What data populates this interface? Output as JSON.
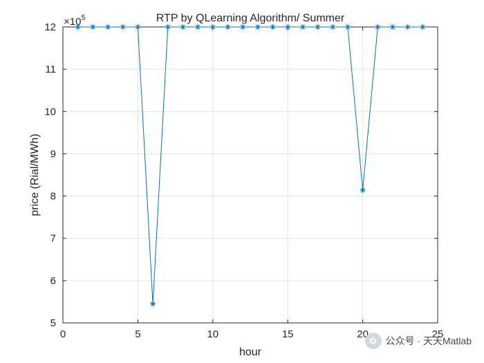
{
  "chart_data": {
    "type": "line",
    "title": "RTP by QLearning Algorithm/ Summer",
    "xlabel": "hour",
    "ylabel": "price (Rial/MWh)",
    "y_exponent_label": "×10",
    "y_exponent_power": "5",
    "xlim": [
      0,
      25
    ],
    "ylim": [
      5,
      12
    ],
    "x_ticks": [
      0,
      5,
      10,
      15,
      20,
      25
    ],
    "y_ticks": [
      5,
      6,
      7,
      8,
      9,
      10,
      11,
      12
    ],
    "grid": true,
    "marker": "*",
    "line_color": "#0072BD",
    "series": [
      {
        "x": [
          1,
          2,
          3,
          4,
          5,
          6,
          7,
          8,
          9,
          10,
          11,
          12,
          13,
          14,
          15,
          16,
          17,
          18,
          19,
          20,
          21,
          22,
          23,
          24
        ],
        "y": [
          12,
          12,
          12,
          12,
          12,
          5.45,
          12,
          12,
          12,
          12,
          12,
          12,
          12,
          12,
          12,
          12,
          12,
          12,
          12,
          8.14,
          12,
          12,
          12,
          12
        ]
      }
    ]
  },
  "watermark": {
    "text": "公众号 · 天天Matlab",
    "icon": "wechat-icon"
  }
}
